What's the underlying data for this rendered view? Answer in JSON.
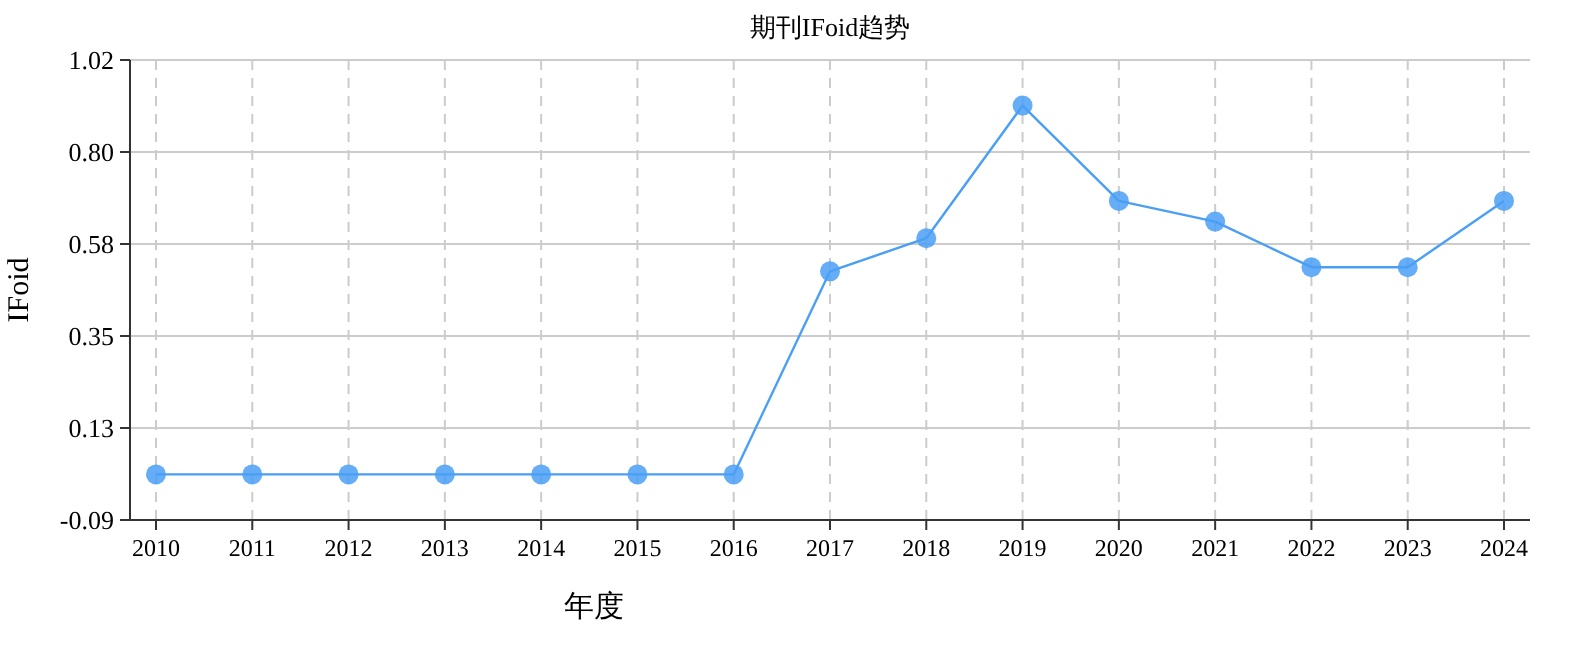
{
  "chart_data": {
    "type": "line",
    "title": "期刊IFoid趋势",
    "xlabel": "年度",
    "ylabel": "IFoid",
    "categories": [
      "2010",
      "2011",
      "2012",
      "2013",
      "2014",
      "2015",
      "2016",
      "2017",
      "2018",
      "2019",
      "2020",
      "2021",
      "2022",
      "2023",
      "2024"
    ],
    "series": [
      {
        "color": "#4a9ff5",
        "values": [
          0.02,
          0.02,
          0.02,
          0.02,
          0.02,
          0.02,
          0.02,
          0.51,
          0.59,
          0.91,
          0.68,
          0.63,
          0.52,
          0.52,
          0.68
        ]
      }
    ],
    "ylim": [
      -0.09,
      1.02
    ],
    "yticks": [
      -0.09,
      {
        "value": 0.132,
        "label": "0.13"
      },
      {
        "value": 0.354,
        "label": "0.35"
      },
      {
        "value": 0.576,
        "label": "0.58"
      },
      {
        "value": 0.798,
        "label": "0.80"
      },
      1.02
    ],
    "grid": true,
    "marker": "circle",
    "line_style": "solid"
  }
}
